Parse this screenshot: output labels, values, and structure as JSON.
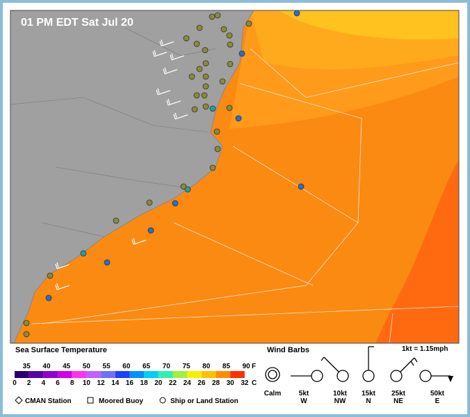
{
  "header": {
    "title": "01 PM EDT Sat Jul 20"
  },
  "sst_legend": {
    "title": "Sea Surface Temperature",
    "fahrenheit": [
      35,
      40,
      45,
      50,
      55,
      60,
      65,
      70,
      75,
      80,
      85,
      90
    ],
    "f_unit": "F",
    "celsius": [
      0,
      2,
      4,
      6,
      8,
      10,
      12,
      14,
      16,
      18,
      20,
      22,
      24,
      26,
      28,
      30,
      32
    ],
    "c_unit": "C",
    "colors": [
      "#2a0070",
      "#5a00a8",
      "#9000d0",
      "#d000e8",
      "#ff30f0",
      "#c060ff",
      "#7070ff",
      "#2040ff",
      "#0090ff",
      "#00d0f0",
      "#30f0b0",
      "#a0f040",
      "#f8f000",
      "#ffc000",
      "#ff8c00",
      "#ff3000"
    ]
  },
  "wind_legend": {
    "title": "Wind Barbs",
    "conversion": "1kt = 1.15mph",
    "items": [
      {
        "speed": "Calm",
        "dir": ""
      },
      {
        "speed": "5kt",
        "dir": "W"
      },
      {
        "speed": "10kt",
        "dir": "NW"
      },
      {
        "speed": "15kt",
        "dir": "N"
      },
      {
        "speed": "25kt",
        "dir": "NE"
      },
      {
        "speed": "50kt",
        "dir": "E"
      }
    ]
  },
  "station_legend": [
    "CMAN Station",
    "Moored Buoy",
    "Ship or Land Station"
  ]
}
